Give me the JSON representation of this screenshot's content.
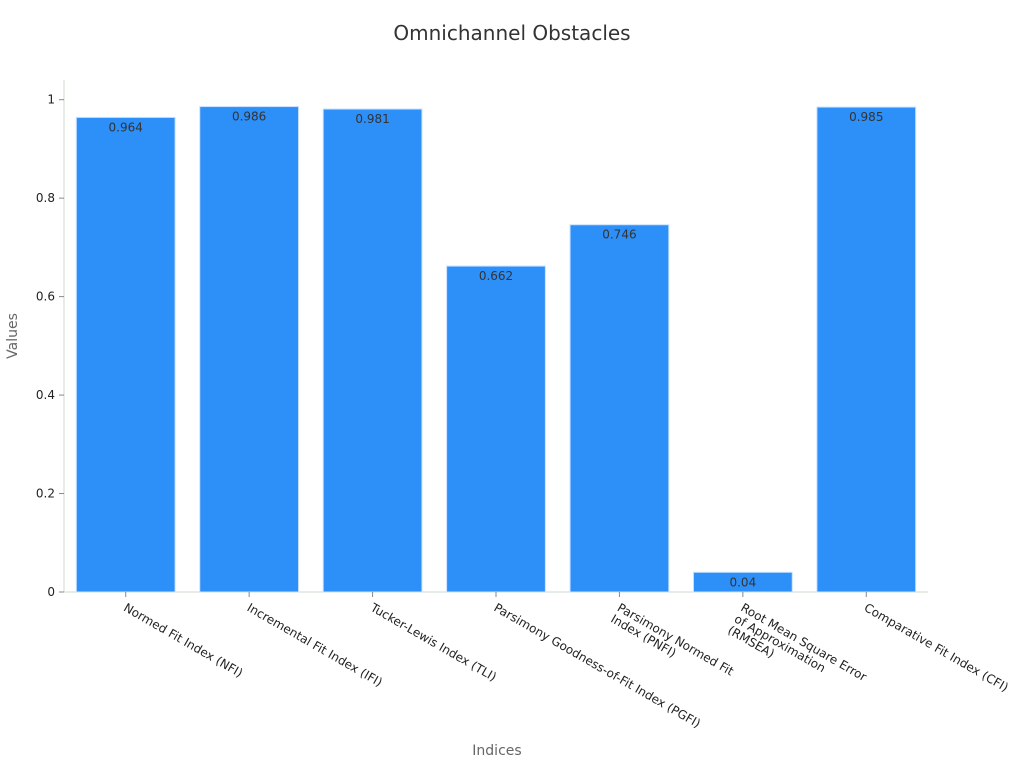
{
  "chart_data": {
    "type": "bar",
    "title": "Omnichannel Obstacles",
    "xlabel": "Indices",
    "ylabel": "Values",
    "ylim": [
      0,
      1.04
    ],
    "yticks": [
      "0",
      "0.2",
      "0.4",
      "0.6",
      "0.8",
      "1"
    ],
    "ytick_values": [
      0,
      0.2,
      0.4,
      0.6,
      0.8,
      1
    ],
    "grid": false,
    "categories": [
      [
        "Normed Fit Index (NFI)"
      ],
      [
        "Incremental Fit Index (IFI)"
      ],
      [
        "Tucker-Lewis Index (TLI)"
      ],
      [
        "Parsimony Goodness-of-Fit Index (PGFI)"
      ],
      [
        "Parsimony Normed Fit",
        "Index (PNFI)"
      ],
      [
        "Root Mean Square Error",
        "of Approximation",
        "(RMSEA)"
      ],
      [
        "Comparative Fit Index (CFI)"
      ]
    ],
    "values": [
      0.964,
      0.986,
      0.981,
      0.662,
      0.746,
      0.04,
      0.985
    ],
    "value_labels": [
      "0.964",
      "0.986",
      "0.981",
      "0.662",
      "0.746",
      "0.04",
      "0.985"
    ],
    "bar_color": "#2d8ff8",
    "bar_edge_color": "#c6e0ff"
  }
}
